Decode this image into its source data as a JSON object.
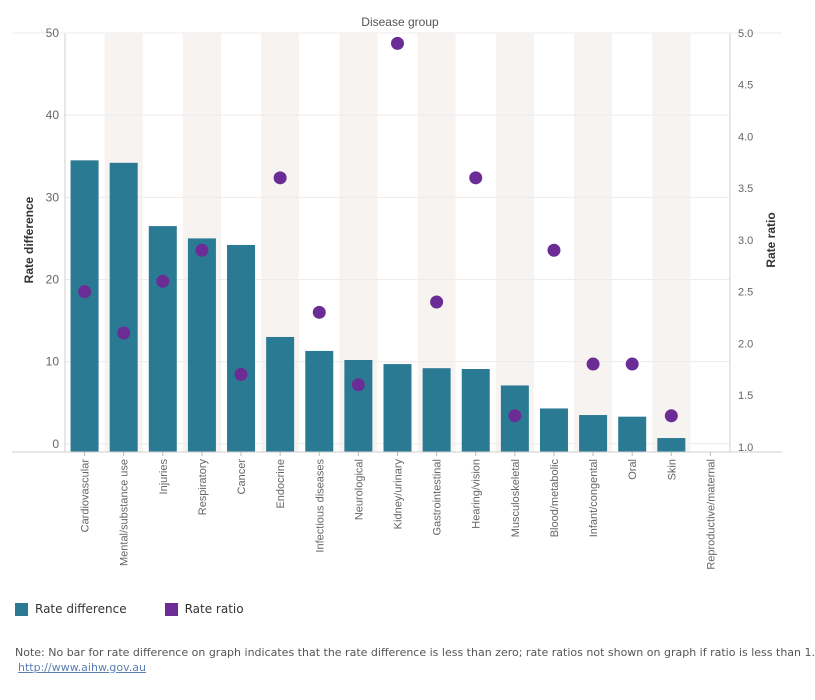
{
  "chart_data": {
    "type": "bar",
    "title": "Disease group",
    "ylabel_left": "Rate difference",
    "ylabel_right": "Rate ratio",
    "ylim_left": [
      -1,
      50
    ],
    "yticks_left": [
      0,
      10,
      20,
      30,
      40,
      50
    ],
    "ylim_right": [
      0.95,
      5.0
    ],
    "yticks_right": [
      1.0,
      1.5,
      2.0,
      2.5,
      3.0,
      3.5,
      4.0,
      4.5,
      5.0
    ],
    "right_tick_format": "0.0",
    "categories": [
      "Cardiovascular",
      "Mental/substance use",
      "Injuries",
      "Respiratory",
      "Cancer",
      "Endocrine",
      "Infectious diseases",
      "Neurological",
      "Kidney/urinary",
      "Gastrointestinal",
      "Hearing/vision",
      "Musculoskeletal",
      "Blood/metabolic",
      "Infant/congental",
      "Oral",
      "Skin",
      "Reproductive/maternal"
    ],
    "series": [
      {
        "name": "Rate difference",
        "kind": "bar",
        "color": "#2b7a93",
        "values": [
          34.5,
          34.2,
          26.5,
          25.0,
          24.2,
          13.0,
          11.3,
          10.2,
          9.7,
          9.2,
          9.1,
          7.1,
          4.3,
          3.5,
          3.3,
          0.7,
          null
        ]
      },
      {
        "name": "Rate ratio",
        "kind": "dot",
        "color": "#6b2d95",
        "values": [
          2.5,
          2.1,
          2.6,
          2.9,
          1.7,
          3.6,
          2.3,
          1.6,
          4.9,
          2.4,
          3.6,
          1.3,
          2.9,
          1.8,
          1.8,
          1.3,
          null
        ]
      }
    ],
    "shaded_bands": true,
    "grid": "horizontal",
    "legend_position": "bottom-left"
  },
  "legend": [
    {
      "label": "Rate difference",
      "color": "#2b7a93"
    },
    {
      "label": "Rate ratio",
      "color": "#6b2d95"
    }
  ],
  "note": "Note: No bar for rate difference on graph indicates that the rate difference is less than zero; rate ratios not shown on graph if ratio is less than 1.",
  "link": "http://www.aihw.gov.au"
}
